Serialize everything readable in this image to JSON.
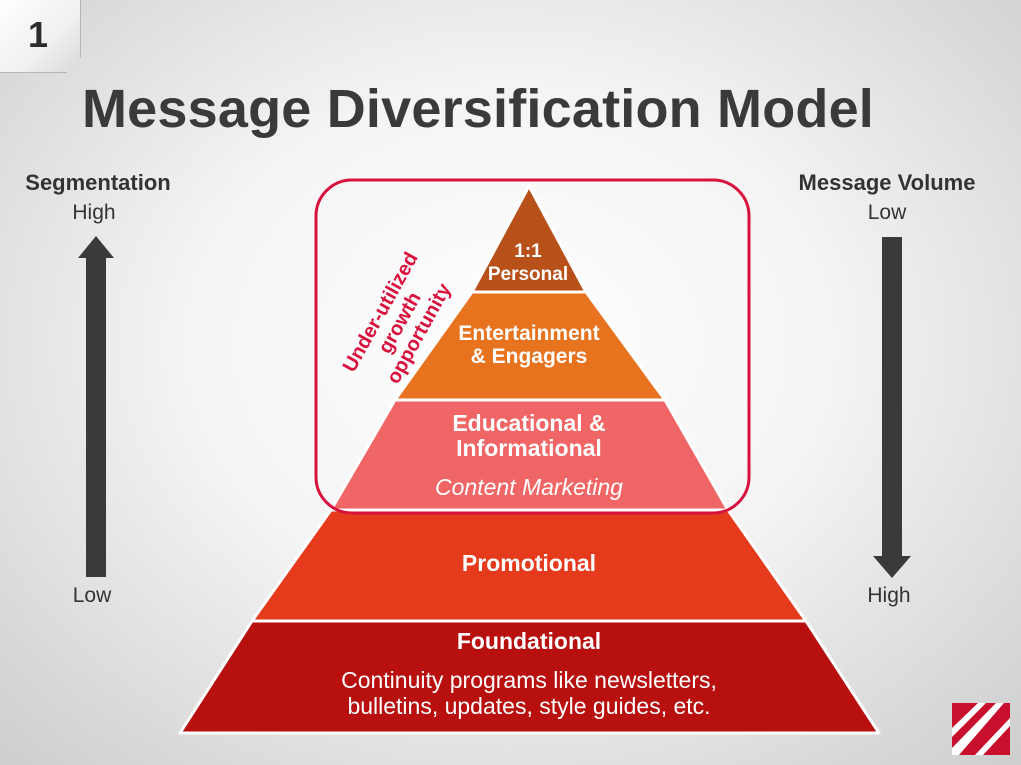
{
  "slide_number": "1",
  "title": "Message Diversification Model",
  "left_axis": {
    "title": "Segmentation",
    "top_label": "High",
    "bottom_label": "Low",
    "direction": "up"
  },
  "right_axis": {
    "title": "Message Volume",
    "top_label": "Low",
    "bottom_label": "High",
    "direction": "down"
  },
  "pyramid": {
    "tiers": [
      {
        "line1": "1:1",
        "line2": "Personal",
        "color": "#b8501a"
      },
      {
        "line1": "Entertainment",
        "line2": "& Engagers",
        "color": "#e8731f"
      },
      {
        "line1": "Educational &",
        "line2": "Informational",
        "subtitle": "Content Marketing",
        "color": "#f06565"
      },
      {
        "label": "Promotional",
        "color": "#e53a1b"
      },
      {
        "label": "Foundational",
        "description_line1": "Continuity programs like newsletters,",
        "description_line2": "bulletins, updates, style guides, etc.",
        "color": "#b80f0f"
      }
    ]
  },
  "highlight": {
    "line1": "Under-utilized growth",
    "line2": "opportunity",
    "color": "#d8123d"
  },
  "colors": {
    "arrow": "#3a3a3a",
    "title": "#3a3a3a",
    "logo": "#c8102e"
  },
  "icons": {
    "logo": "company-logo-icon",
    "up_arrow": "up-arrow-icon",
    "down_arrow": "down-arrow-icon"
  }
}
